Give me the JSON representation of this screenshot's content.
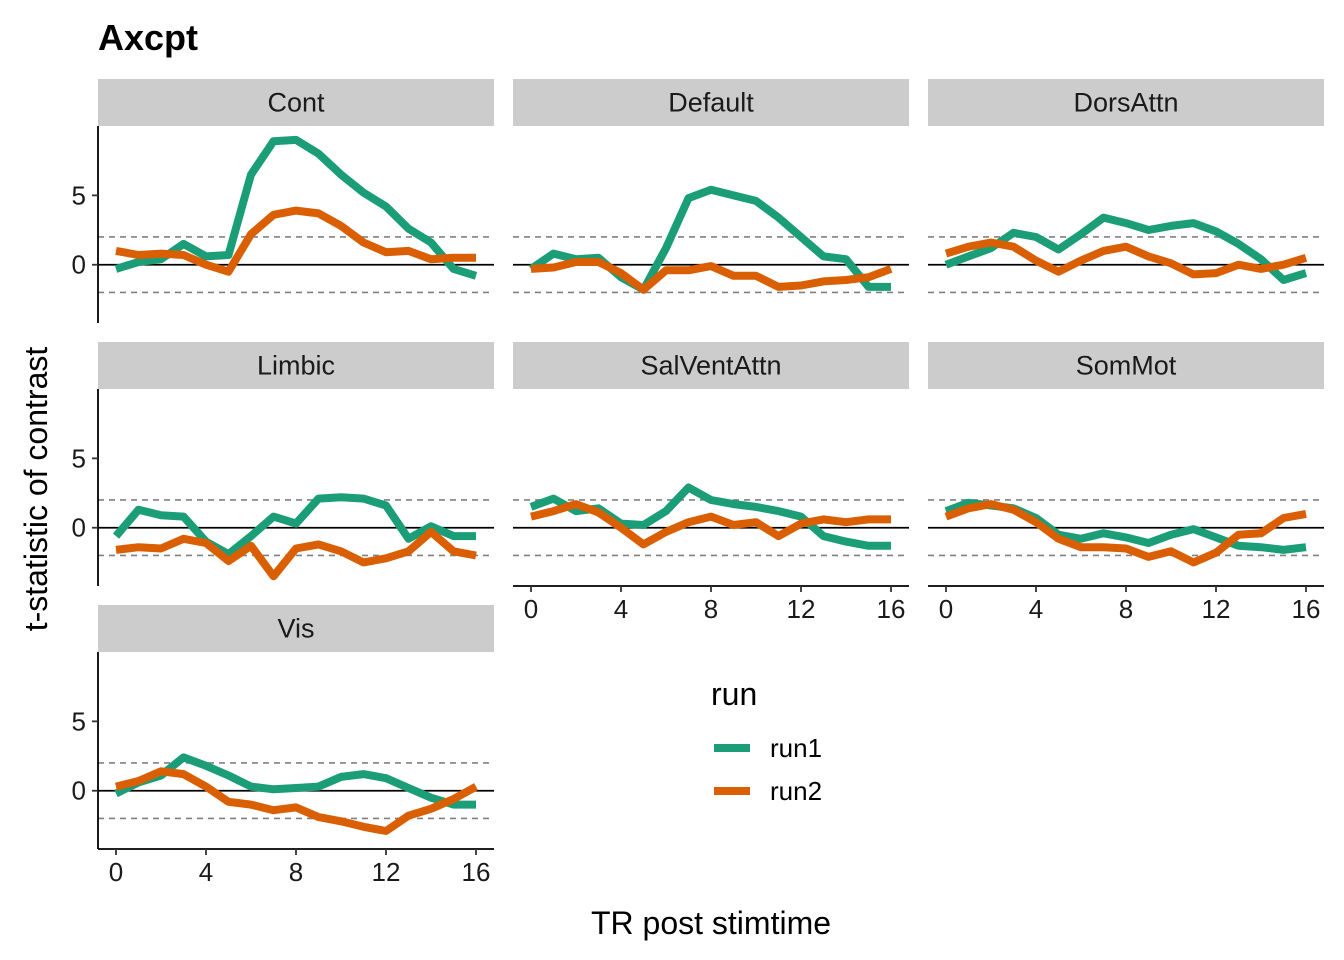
{
  "chart_data": {
    "type": "line",
    "title": "Axcpt",
    "xlabel": "TR post stimtime",
    "ylabel": "t-statistic of contrast",
    "x": [
      0,
      1,
      2,
      3,
      4,
      5,
      6,
      7,
      8,
      9,
      10,
      11,
      12,
      13,
      14,
      15,
      16
    ],
    "xticks": [
      0,
      4,
      8,
      12,
      16
    ],
    "yticks": [
      0,
      5
    ],
    "ylim": [
      -4.2,
      10.0
    ],
    "xlim": [
      -0.8,
      16.8
    ],
    "reference_lines": {
      "solid": [
        0
      ],
      "dashed": [
        2,
        -2
      ]
    },
    "legend": {
      "title": "run",
      "position": "bottom-center",
      "entries": [
        "run1",
        "run2"
      ]
    },
    "series_colors": {
      "run1": "#1b9e77",
      "run2": "#d95f02"
    },
    "facets": [
      {
        "name": "Cont",
        "series": [
          {
            "name": "run1",
            "values": [
              -0.3,
              0.2,
              0.4,
              1.5,
              0.6,
              0.7,
              6.5,
              8.9,
              9.0,
              8.0,
              6.5,
              5.2,
              4.2,
              2.6,
              1.6,
              -0.3,
              -0.8
            ]
          },
          {
            "name": "run2",
            "values": [
              1.0,
              0.7,
              0.8,
              0.7,
              0.0,
              -0.5,
              2.2,
              3.6,
              3.9,
              3.7,
              2.8,
              1.6,
              0.9,
              1.0,
              0.4,
              0.5,
              0.5
            ]
          }
        ]
      },
      {
        "name": "Default",
        "series": [
          {
            "name": "run1",
            "values": [
              -0.3,
              0.8,
              0.4,
              0.5,
              -0.9,
              -1.8,
              1.2,
              4.8,
              5.4,
              5.0,
              4.6,
              3.4,
              2.0,
              0.6,
              0.4,
              -1.6,
              -1.6
            ]
          },
          {
            "name": "run2",
            "values": [
              -0.3,
              -0.2,
              0.2,
              0.2,
              -0.6,
              -1.8,
              -0.4,
              -0.4,
              -0.1,
              -0.8,
              -0.8,
              -1.6,
              -1.5,
              -1.2,
              -1.1,
              -0.9,
              -0.3
            ]
          }
        ]
      },
      {
        "name": "DorsAttn",
        "series": [
          {
            "name": "run1",
            "values": [
              0.0,
              0.6,
              1.2,
              2.3,
              2.0,
              1.1,
              2.2,
              3.4,
              3.0,
              2.5,
              2.8,
              3.0,
              2.4,
              1.5,
              0.4,
              -1.1,
              -0.6
            ]
          },
          {
            "name": "run2",
            "values": [
              0.8,
              1.3,
              1.6,
              1.3,
              0.3,
              -0.5,
              0.3,
              1.0,
              1.3,
              0.6,
              0.1,
              -0.7,
              -0.6,
              0.0,
              -0.3,
              0.0,
              0.5
            ]
          }
        ]
      },
      {
        "name": "Limbic",
        "series": [
          {
            "name": "run1",
            "values": [
              -0.6,
              1.3,
              0.9,
              0.8,
              -1.0,
              -1.9,
              -0.6,
              0.8,
              0.3,
              2.1,
              2.2,
              2.1,
              1.6,
              -0.8,
              0.1,
              -0.6,
              -0.6
            ]
          },
          {
            "name": "run2",
            "values": [
              -1.6,
              -1.4,
              -1.5,
              -0.8,
              -1.1,
              -2.4,
              -1.3,
              -3.5,
              -1.5,
              -1.2,
              -1.7,
              -2.5,
              -2.2,
              -1.7,
              -0.3,
              -1.7,
              -2.0
            ]
          }
        ]
      },
      {
        "name": "SalVentAttn",
        "series": [
          {
            "name": "run1",
            "values": [
              1.5,
              2.1,
              1.2,
              1.4,
              0.3,
              0.2,
              1.2,
              2.9,
              2.0,
              1.7,
              1.5,
              1.2,
              0.8,
              -0.6,
              -1.0,
              -1.3,
              -1.3
            ]
          },
          {
            "name": "run2",
            "values": [
              0.8,
              1.2,
              1.7,
              1.1,
              0.0,
              -1.2,
              -0.3,
              0.4,
              0.8,
              0.2,
              0.4,
              -0.6,
              0.3,
              0.6,
              0.4,
              0.6,
              0.6
            ]
          }
        ]
      },
      {
        "name": "SomMot",
        "series": [
          {
            "name": "run1",
            "values": [
              1.2,
              1.8,
              1.6,
              1.4,
              0.7,
              -0.5,
              -0.8,
              -0.4,
              -0.7,
              -1.1,
              -0.5,
              -0.1,
              -0.7,
              -1.3,
              -1.4,
              -1.6,
              -1.4
            ]
          },
          {
            "name": "run2",
            "values": [
              0.8,
              1.4,
              1.7,
              1.3,
              0.4,
              -0.8,
              -1.4,
              -1.4,
              -1.5,
              -2.1,
              -1.7,
              -2.5,
              -1.8,
              -0.5,
              -0.4,
              0.7,
              1.0
            ]
          }
        ]
      },
      {
        "name": "Vis",
        "series": [
          {
            "name": "run1",
            "values": [
              -0.2,
              0.6,
              1.1,
              2.4,
              1.8,
              1.1,
              0.3,
              0.1,
              0.2,
              0.3,
              1.0,
              1.2,
              0.9,
              0.2,
              -0.5,
              -1.0,
              -1.0
            ]
          },
          {
            "name": "run2",
            "values": [
              0.3,
              0.7,
              1.4,
              1.2,
              0.3,
              -0.8,
              -1.0,
              -1.4,
              -1.2,
              -1.9,
              -2.2,
              -2.6,
              -2.9,
              -1.8,
              -1.3,
              -0.6,
              0.3
            ]
          }
        ]
      }
    ]
  }
}
